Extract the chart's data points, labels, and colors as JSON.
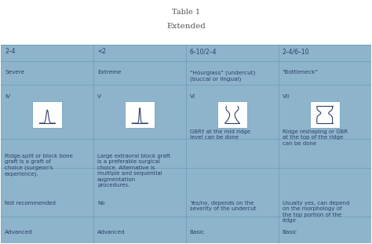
{
  "title": "Table 1",
  "subtitle": "Extended",
  "bg_color": "#8eb4cb",
  "header_bg": "#ffffff",
  "cell_bg": "#8eb4cb",
  "text_color": "#2c3e6b",
  "title_color": "#555555",
  "border_color": "#6a9ab8",
  "col_labels": [
    "2–4",
    "<2",
    "6–10/2–4",
    "2–4/6–10"
  ],
  "severity": [
    "Severe",
    "Extreme",
    "\"Hourglass\" (undercut)\n(buccal or lingual)",
    "\"Bottleneck\""
  ],
  "roman": [
    "IV",
    "V",
    "VI",
    "VII"
  ],
  "graft_notes": [
    "",
    "",
    "GBR† at the mid ridge\nlevel can be done",
    "Ridge reshaping or GBR\nat the top of the ridge\ncan be done"
  ],
  "surgical": [
    "Ridge-split or block bone\ngraft is a graft of\nchoice (surgeon's\nexperience).",
    "Large extraoral block graft\nis a preferable surgical\nchoice. Alternative is\nmultiple and sequential\naugmentation\nprocedures.",
    "",
    ""
  ],
  "implant": [
    "Not recommended",
    "No",
    "Yes/no, depends on the\nseverity of the undercut",
    "Usually yes, can depend\non the morphology of\nthe top portion of the\nridge"
  ],
  "complexity": [
    "Advanced",
    "Advanced",
    "Basic",
    "Basic"
  ],
  "figsize": [
    4.74,
    3.11
  ],
  "dpi": 100
}
